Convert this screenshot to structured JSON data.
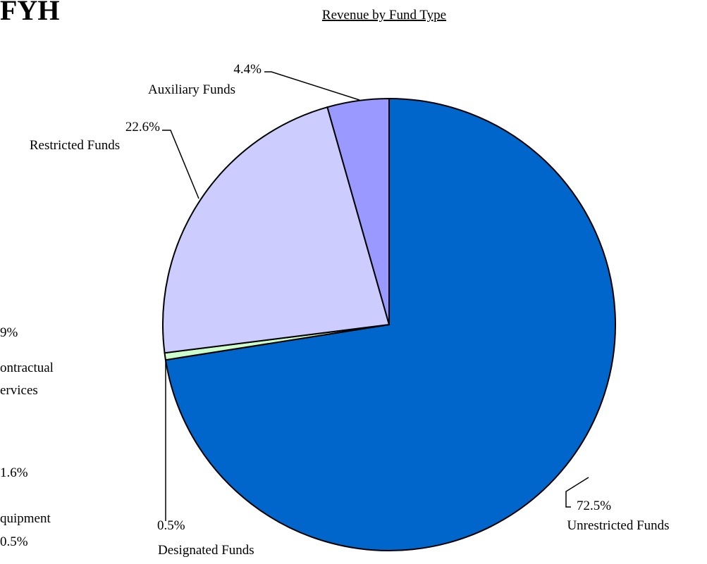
{
  "page": {
    "heading_fragment": "FYH",
    "left_fragments": [
      "9%",
      "ontractual",
      "ervices",
      "1.6%",
      "quipment",
      "0.5%"
    ]
  },
  "chart_data": {
    "type": "pie",
    "title": "Revenue by Fund Type",
    "slices": [
      {
        "label": "Unrestricted Funds",
        "value": 72.5,
        "value_label": "72.5%",
        "color": "#0066CC"
      },
      {
        "label": "Designated Funds",
        "value": 0.5,
        "value_label": "0.5%",
        "color": "#CCFFCC"
      },
      {
        "label": "Restricted Funds",
        "value": 22.6,
        "value_label": "22.6%",
        "color": "#CCCCFF"
      },
      {
        "label": "Auxiliary Funds",
        "value": 4.4,
        "value_label": "4.4%",
        "color": "#9999FF"
      }
    ],
    "start_angle_deg": 0,
    "direction": "clockwise",
    "legend": "none"
  }
}
